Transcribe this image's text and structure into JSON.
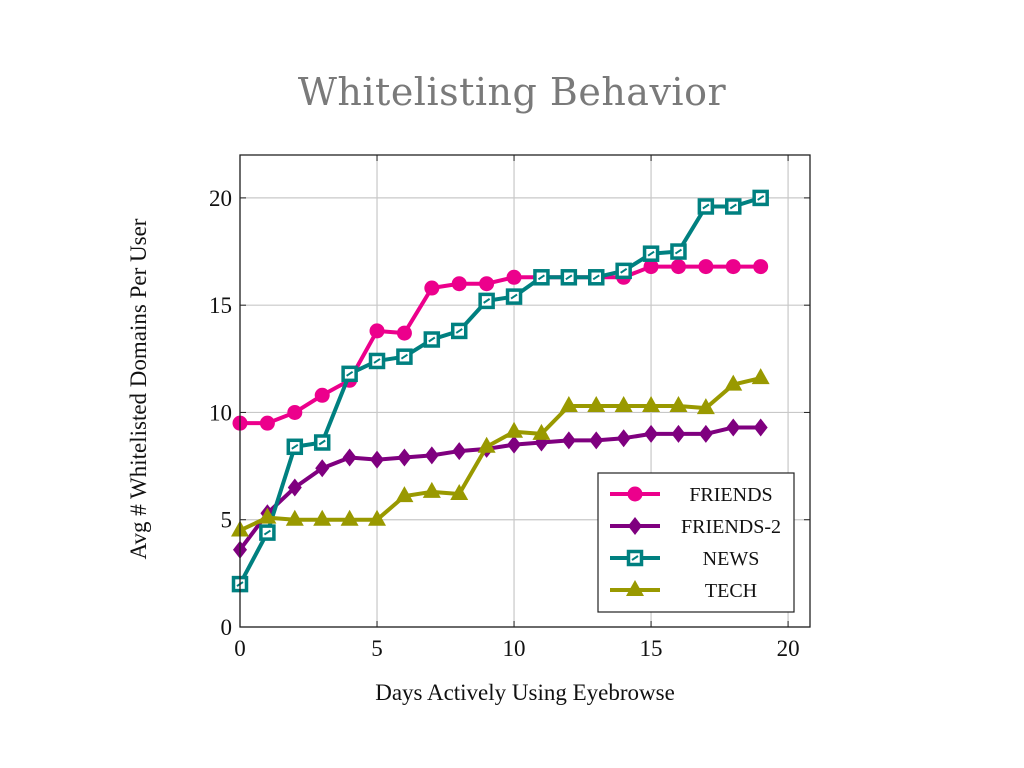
{
  "slide": {
    "title": "Whitelisting Behavior"
  },
  "chart_data": {
    "type": "line",
    "title": "",
    "xlabel": "Days Actively Using Eyebrowse",
    "ylabel": "Avg # Whitelisted Domains Per User",
    "xlim": [
      0,
      20.8
    ],
    "ylim": [
      0,
      22
    ],
    "xticks": [
      0,
      5,
      10,
      15,
      20
    ],
    "yticks": [
      0,
      5,
      10,
      15,
      20
    ],
    "grid": true,
    "legend_position": "bottom-right",
    "x": [
      0,
      1,
      2,
      3,
      4,
      5,
      6,
      7,
      8,
      9,
      10,
      11,
      12,
      13,
      14,
      15,
      16,
      17,
      18,
      19
    ],
    "series": [
      {
        "name": "Friends",
        "legend_label": "FRIENDS",
        "color": "#ec008c",
        "marker": "circle",
        "values": [
          9.5,
          9.5,
          10.0,
          10.8,
          11.5,
          13.8,
          13.7,
          15.8,
          16.0,
          16.0,
          16.3,
          16.3,
          16.3,
          16.3,
          16.3,
          16.8,
          16.8,
          16.8,
          16.8,
          16.8
        ]
      },
      {
        "name": "Friends-2",
        "legend_label": "FRIENDS-2",
        "color": "#7f007f",
        "marker": "diamond",
        "values": [
          3.6,
          5.3,
          6.5,
          7.4,
          7.9,
          7.8,
          7.9,
          8.0,
          8.2,
          8.3,
          8.5,
          8.6,
          8.7,
          8.7,
          8.8,
          9.0,
          9.0,
          9.0,
          9.3,
          9.3
        ]
      },
      {
        "name": "News",
        "legend_label": "NEWS",
        "color": "#008080",
        "marker": "square",
        "values": [
          2.0,
          4.4,
          8.4,
          8.6,
          11.8,
          12.4,
          12.6,
          13.4,
          13.8,
          15.2,
          15.4,
          16.3,
          16.3,
          16.3,
          16.6,
          17.4,
          17.5,
          19.6,
          19.6,
          20.0
        ]
      },
      {
        "name": "Tech",
        "legend_label": "TECH",
        "color": "#999900",
        "marker": "triangle",
        "values": [
          4.5,
          5.1,
          5.0,
          5.0,
          5.0,
          5.0,
          6.1,
          6.3,
          6.2,
          8.4,
          9.1,
          9.0,
          10.3,
          10.3,
          10.3,
          10.3,
          10.3,
          10.2,
          11.3,
          11.6
        ]
      }
    ]
  }
}
